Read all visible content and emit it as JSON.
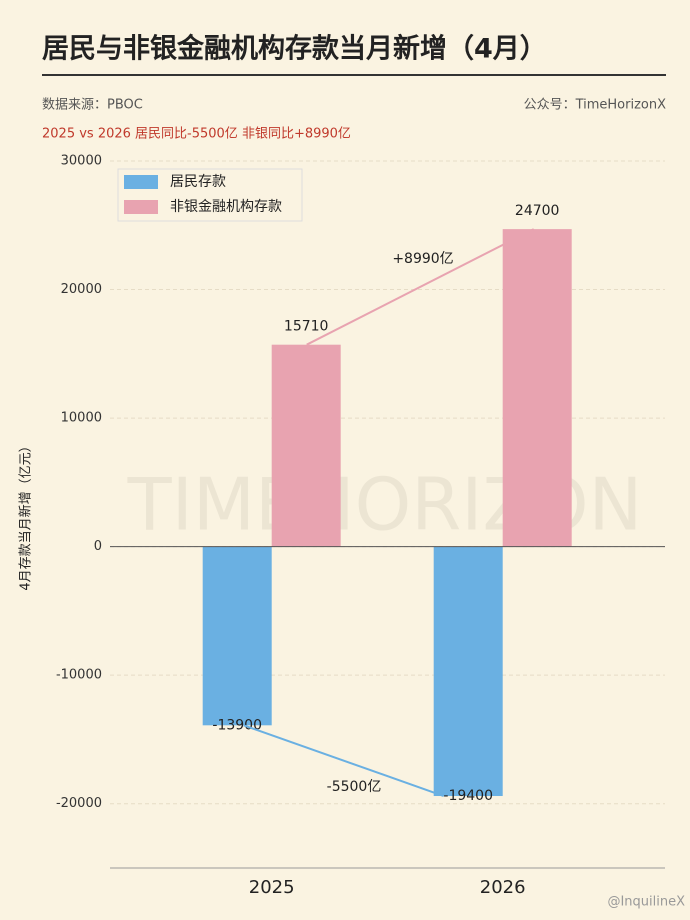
{
  "chart_data": {
    "type": "bar",
    "title": "居民与非银金融机构存款当月新增（4月）",
    "source": "数据来源：PBOC",
    "account": "公众号：TimeHorizonX",
    "subtitle": "2025 vs 2026  居民同比-5500亿  非银同比+8990亿",
    "ylabel": "4月存款当月新增（亿元）",
    "categories": [
      "2025",
      "2026"
    ],
    "series": [
      {
        "name": "居民存款",
        "color": "#6ab0e2",
        "values": [
          -13900,
          -19400
        ]
      },
      {
        "name": "非银金融机构存款",
        "color": "#e8a3b0",
        "values": [
          15710,
          24700
        ]
      }
    ],
    "ylim": [
      -25000,
      30000
    ],
    "yticks": [
      -20000,
      -10000,
      0,
      10000,
      20000,
      30000
    ],
    "grid": true,
    "annotations": [
      "+8990亿",
      "-5500亿"
    ],
    "watermark": "TIMEHORIZON",
    "credit": "@InquilineX"
  }
}
